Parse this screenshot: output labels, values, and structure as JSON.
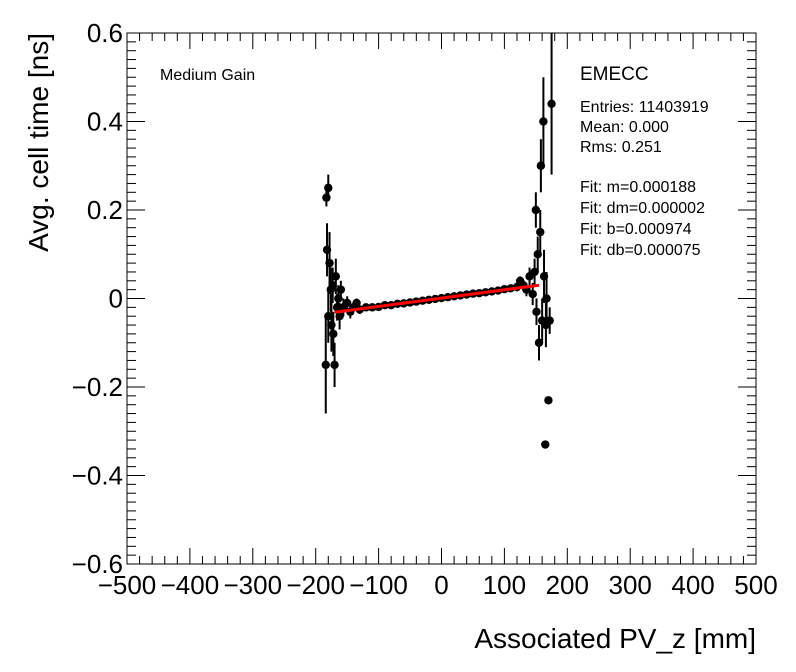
{
  "chart_data": {
    "type": "scatter",
    "xlabel": "Associated PV_z [mm]",
    "ylabel": "Avg. cell time [ns]",
    "xlim": [
      -500,
      500
    ],
    "ylim": [
      -0.6,
      0.6
    ],
    "x_ticks": [
      -500,
      -400,
      -300,
      -200,
      -100,
      0,
      100,
      200,
      300,
      400,
      500
    ],
    "x_tick_labels": [
      "−500",
      "−400",
      "−300",
      "−200",
      "−100",
      "0",
      "100",
      "200",
      "300",
      "400",
      "500"
    ],
    "y_ticks": [
      -0.6,
      -0.4,
      -0.2,
      0,
      0.2,
      0.4,
      0.6
    ],
    "y_tick_labels": [
      "−0.6",
      "−0.4",
      "−0.2",
      "0",
      "0.2",
      "0.4",
      "0.6"
    ],
    "grid": false,
    "marker_color": "#000000",
    "fit_color": "#ff0000",
    "gain_label": "Medium Gain",
    "region_label": "EMECC",
    "stats": {
      "entries": "Entries: 11403919",
      "mean": "Mean: 0.000",
      "rms": "Rms: 0.251"
    },
    "fit_text": {
      "m": "Fit: m=0.000188",
      "dm": "Fit: dm=0.000002",
      "b": "Fit: b=0.000974",
      "db": "Fit: db=0.000075"
    },
    "fit_line": {
      "x": [
        -170,
        155
      ],
      "y": [
        -0.031,
        0.03
      ]
    },
    "points": [
      {
        "x": -183,
        "y": 0.228,
        "e": 0.02
      },
      {
        "x": -180,
        "y": 0.25,
        "e": 0.03
      },
      {
        "x": -182,
        "y": 0.11,
        "e": 0.06
      },
      {
        "x": -184,
        "y": -0.15,
        "e": 0.11
      },
      {
        "x": -178,
        "y": 0.08,
        "e": 0.07
      },
      {
        "x": -180,
        "y": -0.04,
        "e": 0.06
      },
      {
        "x": -176,
        "y": 0.02,
        "e": 0.05
      },
      {
        "x": -175,
        "y": -0.06,
        "e": 0.06
      },
      {
        "x": -173,
        "y": 0.03,
        "e": 0.04
      },
      {
        "x": -172,
        "y": -0.08,
        "e": 0.05
      },
      {
        "x": -170,
        "y": -0.15,
        "e": 0.05
      },
      {
        "x": -168,
        "y": 0.05,
        "e": 0.04
      },
      {
        "x": -166,
        "y": -0.02,
        "e": 0.03
      },
      {
        "x": -164,
        "y": 0.0,
        "e": 0.03
      },
      {
        "x": -162,
        "y": -0.04,
        "e": 0.03
      },
      {
        "x": -160,
        "y": 0.02,
        "e": 0.02
      },
      {
        "x": -156,
        "y": -0.02,
        "e": 0.02
      },
      {
        "x": -150,
        "y": -0.01,
        "e": 0.015
      },
      {
        "x": -145,
        "y": -0.03,
        "e": 0.015
      },
      {
        "x": -140,
        "y": -0.02,
        "e": 0.01
      },
      {
        "x": -135,
        "y": -0.01,
        "e": 0.01
      },
      {
        "x": -130,
        "y": -0.025,
        "e": 0.01
      },
      {
        "x": -120,
        "y": -0.02,
        "e": 0.008
      },
      {
        "x": -110,
        "y": -0.02,
        "e": 0.006
      },
      {
        "x": -100,
        "y": -0.019,
        "e": 0.005
      },
      {
        "x": -90,
        "y": -0.015,
        "e": 0.004
      },
      {
        "x": -80,
        "y": -0.015,
        "e": 0.004
      },
      {
        "x": -70,
        "y": -0.012,
        "e": 0.003
      },
      {
        "x": -60,
        "y": -0.011,
        "e": 0.003
      },
      {
        "x": -50,
        "y": -0.009,
        "e": 0.003
      },
      {
        "x": -40,
        "y": -0.007,
        "e": 0.003
      },
      {
        "x": -30,
        "y": -0.005,
        "e": 0.003
      },
      {
        "x": -20,
        "y": -0.003,
        "e": 0.003
      },
      {
        "x": -10,
        "y": -0.001,
        "e": 0.003
      },
      {
        "x": 0,
        "y": 0.001,
        "e": 0.003
      },
      {
        "x": 10,
        "y": 0.003,
        "e": 0.003
      },
      {
        "x": 20,
        "y": 0.005,
        "e": 0.003
      },
      {
        "x": 30,
        "y": 0.007,
        "e": 0.003
      },
      {
        "x": 40,
        "y": 0.009,
        "e": 0.003
      },
      {
        "x": 50,
        "y": 0.011,
        "e": 0.003
      },
      {
        "x": 60,
        "y": 0.012,
        "e": 0.003
      },
      {
        "x": 70,
        "y": 0.014,
        "e": 0.004
      },
      {
        "x": 80,
        "y": 0.016,
        "e": 0.004
      },
      {
        "x": 90,
        "y": 0.018,
        "e": 0.005
      },
      {
        "x": 100,
        "y": 0.021,
        "e": 0.006
      },
      {
        "x": 110,
        "y": 0.023,
        "e": 0.008
      },
      {
        "x": 120,
        "y": 0.026,
        "e": 0.01
      },
      {
        "x": 125,
        "y": 0.04,
        "e": 0.01
      },
      {
        "x": 130,
        "y": 0.03,
        "e": 0.012
      },
      {
        "x": 135,
        "y": 0.02,
        "e": 0.015
      },
      {
        "x": 140,
        "y": 0.05,
        "e": 0.02
      },
      {
        "x": 145,
        "y": 0.01,
        "e": 0.025
      },
      {
        "x": 148,
        "y": 0.06,
        "e": 0.03
      },
      {
        "x": 150,
        "y": 0.2,
        "e": 0.04
      },
      {
        "x": 151,
        "y": -0.03,
        "e": 0.03
      },
      {
        "x": 153,
        "y": 0.1,
        "e": 0.04
      },
      {
        "x": 155,
        "y": -0.1,
        "e": 0.04
      },
      {
        "x": 157,
        "y": 0.15,
        "e": 0.05
      },
      {
        "x": 158,
        "y": 0.3,
        "e": 0.06
      },
      {
        "x": 160,
        "y": -0.05,
        "e": 0.05
      },
      {
        "x": 162,
        "y": 0.4,
        "e": 0.1
      },
      {
        "x": 163,
        "y": 0.05,
        "e": 0.06
      },
      {
        "x": 165,
        "y": -0.33,
        "e": 0.0
      },
      {
        "x": 166,
        "y": -0.06,
        "e": 0.05
      },
      {
        "x": 167,
        "y": 0.0,
        "e": 0.06
      },
      {
        "x": 170,
        "y": -0.23,
        "e": 0.0
      },
      {
        "x": 172,
        "y": -0.05,
        "e": 0.03
      },
      {
        "x": 175,
        "y": 0.44,
        "e": 0.16
      }
    ]
  }
}
